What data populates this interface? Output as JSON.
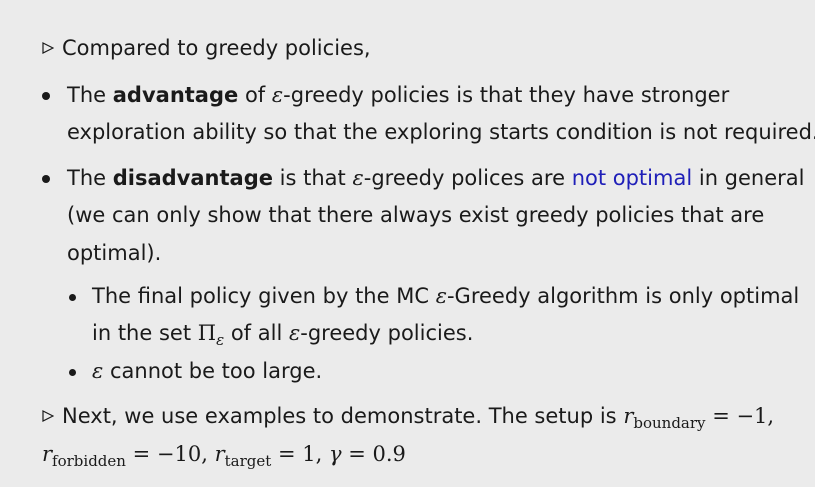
{
  "intro": {
    "text": "Compared to greedy policies,"
  },
  "item1": {
    "the": "The",
    "bold": "advantage",
    "of": "of",
    "eps": "ε",
    "rest": "-greedy policies is that they have stronger",
    "line2": "exploration ability so that the exploring starts condition is not required."
  },
  "item2": {
    "the": "The",
    "bold": "disadvantage",
    "is_that": "is that",
    "eps": "ε",
    "mid": "-greedy polices are",
    "highlight": "not optimal",
    "end": "in general",
    "line2": "(we can only show that there always exist greedy policies that are",
    "line3": "optimal)."
  },
  "sub1": {
    "pre": "The final policy given by the MC",
    "eps": "ε",
    "post": "-Greedy algorithm is only optimal",
    "line2_pre": "in the set",
    "pi": "Π",
    "pi_sub": "ε",
    "line2_mid": "of all",
    "line2_eps": "ε",
    "line2_post": "-greedy policies."
  },
  "sub2": {
    "eps": "ε",
    "text": "cannot be too large."
  },
  "next": {
    "text": "Next, we use examples to demonstrate.  The setup is",
    "r1": "r",
    "r1_sub": "boundary",
    "r1_val": " = −1,",
    "r2": "r",
    "r2_sub": "forbidden",
    "r2_val": " = −10, ",
    "r3": "r",
    "r3_sub": "target",
    "r3_val": " = 1, ",
    "gamma": "γ",
    "gamma_val": " = 0.9"
  }
}
